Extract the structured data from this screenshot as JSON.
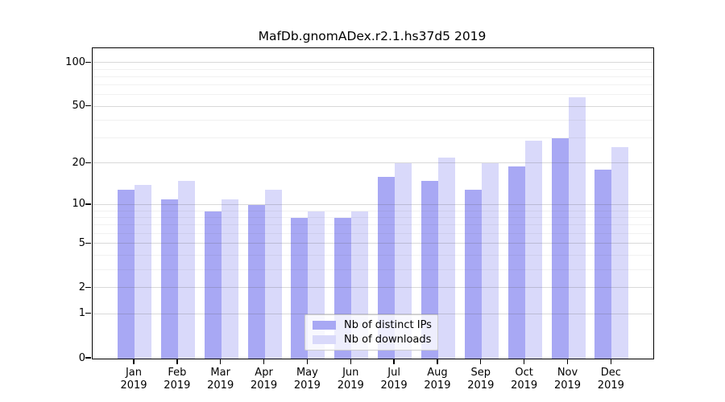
{
  "title": "MafDb.gnomADex.r2.1.hs37d5 2019",
  "chart_data": {
    "type": "bar",
    "title": "MafDb.gnomADex.r2.1.hs37d5 2019",
    "categories": [
      "Jan 2019",
      "Feb 2019",
      "Mar 2019",
      "Apr 2019",
      "May 2019",
      "Jun 2019",
      "Jul 2019",
      "Aug 2019",
      "Sep 2019",
      "Oct 2019",
      "Nov 2019",
      "Dec 2019"
    ],
    "series": [
      {
        "name": "Nb of distinct IPs",
        "color": "#a8a8f4",
        "values": [
          13,
          11,
          9,
          10,
          8,
          8,
          16,
          15,
          13,
          19,
          30,
          18
        ]
      },
      {
        "name": "Nb of downloads",
        "color": "#d9d9fa",
        "values": [
          14,
          15,
          11,
          13,
          9,
          9,
          20,
          22,
          20,
          29,
          58,
          26
        ]
      }
    ],
    "xlabel": "",
    "ylabel": "",
    "y_scale": "log10(x+1)",
    "ylim": [
      0,
      126
    ],
    "y_tick_labels": [
      "100",
      "50",
      "20",
      "10",
      "5",
      "2",
      "1",
      "0"
    ],
    "y_tick_values": [
      100,
      50,
      20,
      10,
      5,
      2,
      1,
      0
    ],
    "y_major_gridlines": [
      1,
      2,
      5,
      10,
      20,
      50,
      100
    ],
    "y_minor_gridlines": [
      3,
      4,
      6,
      7,
      8,
      9,
      30,
      40,
      60,
      70,
      80,
      90
    ],
    "grid": "on",
    "legend_position": "inside-bottom-center",
    "axis_color": "#000000",
    "background_color": "#ffffff"
  }
}
